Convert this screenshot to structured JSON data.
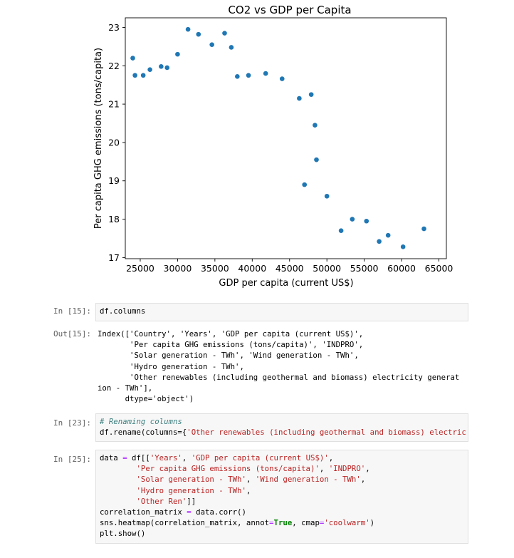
{
  "chart_data": {
    "type": "scatter",
    "title": "CO2 vs GDP per Capita",
    "xlabel": "GDP per capita (current US$)",
    "ylabel": "Per capita GHG emissions (tons/capita)",
    "xlim": [
      23000,
      66000
    ],
    "ylim": [
      16.97,
      23.25
    ],
    "xticks": [
      25000,
      30000,
      35000,
      40000,
      45000,
      50000,
      55000,
      60000,
      65000
    ],
    "yticks": [
      17,
      18,
      19,
      20,
      21,
      22,
      23
    ],
    "grid": false,
    "point_color": "#1f77b4",
    "points": [
      {
        "x": 24000,
        "y": 22.2
      },
      {
        "x": 24300,
        "y": 21.75
      },
      {
        "x": 25400,
        "y": 21.75
      },
      {
        "x": 26300,
        "y": 21.9
      },
      {
        "x": 27800,
        "y": 21.98
      },
      {
        "x": 28600,
        "y": 21.95
      },
      {
        "x": 30000,
        "y": 22.3
      },
      {
        "x": 31400,
        "y": 22.95
      },
      {
        "x": 32800,
        "y": 22.82
      },
      {
        "x": 34600,
        "y": 22.55
      },
      {
        "x": 36300,
        "y": 22.85
      },
      {
        "x": 37200,
        "y": 22.48
      },
      {
        "x": 38000,
        "y": 21.72
      },
      {
        "x": 39500,
        "y": 21.75
      },
      {
        "x": 41800,
        "y": 21.8
      },
      {
        "x": 44000,
        "y": 21.66
      },
      {
        "x": 46300,
        "y": 21.15
      },
      {
        "x": 47900,
        "y": 21.25
      },
      {
        "x": 48400,
        "y": 20.45
      },
      {
        "x": 48600,
        "y": 19.55
      },
      {
        "x": 47000,
        "y": 18.9
      },
      {
        "x": 50000,
        "y": 18.6
      },
      {
        "x": 51900,
        "y": 17.7
      },
      {
        "x": 53400,
        "y": 18.0
      },
      {
        "x": 55300,
        "y": 17.95
      },
      {
        "x": 57000,
        "y": 17.42
      },
      {
        "x": 58200,
        "y": 17.58
      },
      {
        "x": 60200,
        "y": 17.28
      },
      {
        "x": 63000,
        "y": 17.75
      }
    ]
  },
  "cells": {
    "in15": {
      "prompt": "In [15]:",
      "code": "df.columns"
    },
    "out15": {
      "prompt": "Out[15]:",
      "text": "Index(['Country', 'Years', 'GDP per capita (current US$)',\n       'Per capita GHG emissions (tons/capita)', 'INDPRO',\n       'Solar generation - TWh', 'Wind generation - TWh',\n       'Hydro generation - TWh',\n       'Other renewables (including geothermal and biomass) electricity generat\nion - TWh'],\n      dtype='object')"
    },
    "in23": {
      "prompt": "In [23]:",
      "comment": "# Renaming columns",
      "code_a": "df.rename(columns=",
      "code_b": "{",
      "code_c": "'Other renewables (including geothermal and biomass) electric"
    },
    "in25": {
      "prompt": "In [25]:",
      "lines": [
        "data = df[['Years', 'GDP per capita (current US$)',",
        "        'Per capita GHG emissions (tons/capita)', 'INDPRO',",
        "        'Solar generation - TWh', 'Wind generation - TWh',",
        "        'Hydro generation - TWh',",
        "        'Other Ren']]",
        "correlation_matrix = data.corr()",
        "sns.heatmap(correlation_matrix, annot=True, cmap='coolwarm')",
        "plt.show()"
      ]
    }
  }
}
